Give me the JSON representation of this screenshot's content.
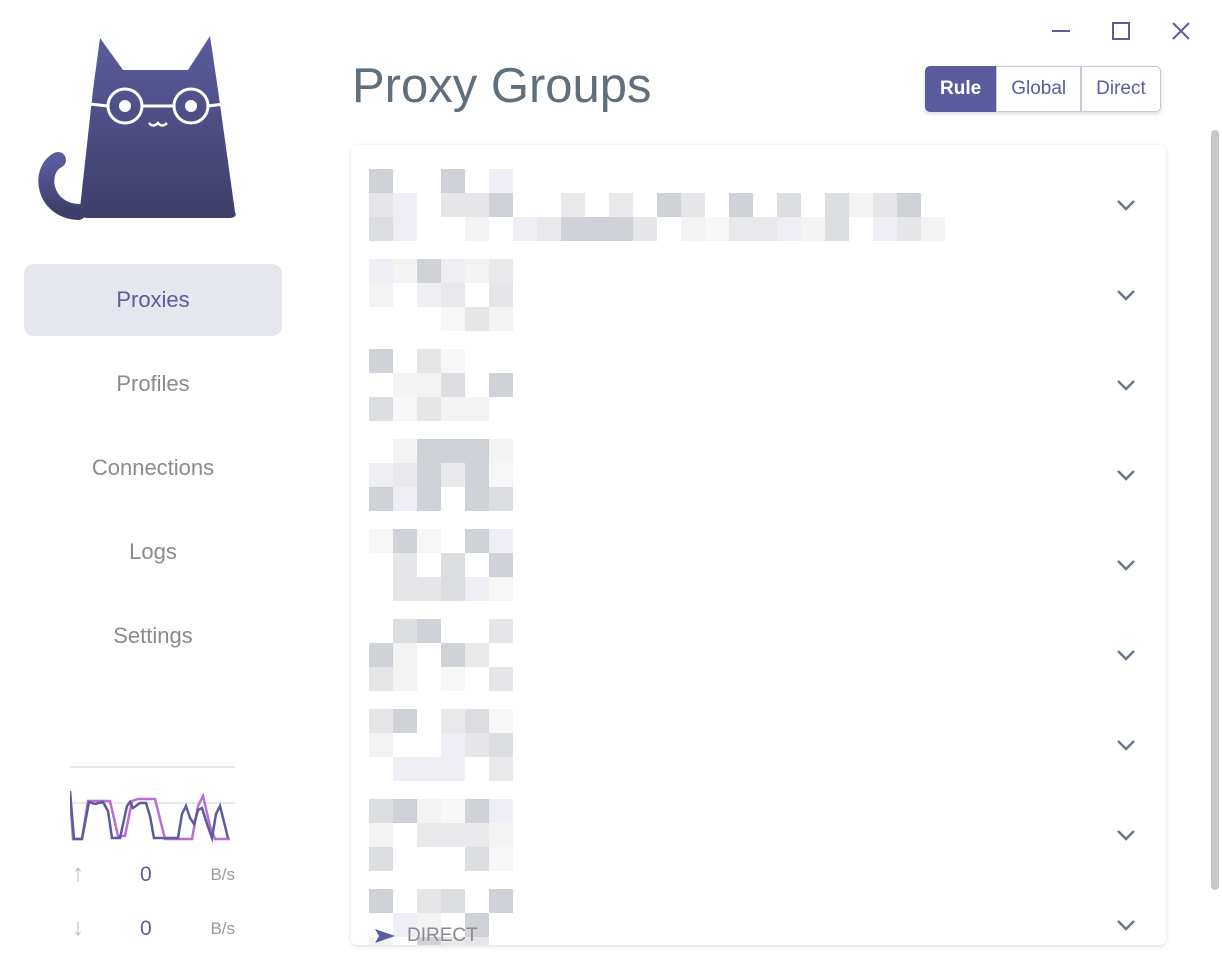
{
  "window": {
    "minimize_icon": "minimize-icon",
    "maximize_icon": "maximize-icon",
    "close_icon": "close-icon"
  },
  "sidebar": {
    "items": [
      {
        "label": "Proxies",
        "active": true
      },
      {
        "label": "Profiles"
      },
      {
        "label": "Connections"
      },
      {
        "label": "Logs"
      },
      {
        "label": "Settings"
      }
    ],
    "traffic": {
      "upload_value": "0",
      "upload_unit": "B/s",
      "download_value": "0",
      "download_unit": "B/s"
    }
  },
  "main": {
    "title": "Proxy Groups",
    "modes": [
      {
        "label": "Rule",
        "active": true
      },
      {
        "label": "Global"
      },
      {
        "label": "Direct"
      }
    ],
    "groups_count_rows": 9,
    "last_group_proxy": "DIRECT"
  },
  "colors": {
    "accent": "#5b5c9d",
    "upload_line": "#b86fd1"
  }
}
